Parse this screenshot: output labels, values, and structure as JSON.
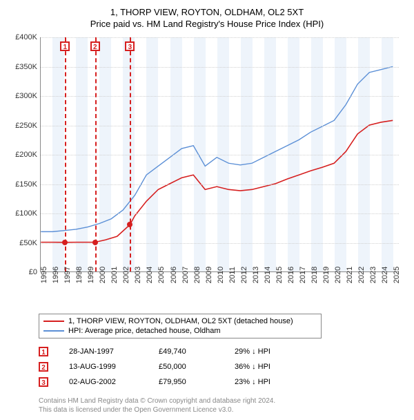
{
  "title_line1": "1, THORP VIEW, ROYTON, OLDHAM, OL2 5XT",
  "title_line2": "Price paid vs. HM Land Registry's House Price Index (HPI)",
  "chart": {
    "type": "line",
    "x_min": 1995,
    "x_max": 2025.5,
    "y_min": 0,
    "y_max": 400000,
    "y_ticks": [
      0,
      50000,
      100000,
      150000,
      200000,
      250000,
      300000,
      350000,
      400000
    ],
    "y_tick_labels": [
      "£0",
      "£50K",
      "£100K",
      "£150K",
      "£200K",
      "£250K",
      "£300K",
      "£350K",
      "£400K"
    ],
    "x_ticks": [
      1995,
      1996,
      1997,
      1998,
      1999,
      2000,
      2001,
      2002,
      2003,
      2004,
      2005,
      2006,
      2007,
      2008,
      2009,
      2010,
      2011,
      2012,
      2013,
      2014,
      2015,
      2016,
      2017,
      2018,
      2019,
      2020,
      2021,
      2022,
      2023,
      2024,
      2025
    ],
    "background_color": "#ffffff",
    "grid_color": "#d0d0d0",
    "shade_color": "#eef4fb",
    "series": [
      {
        "id": "price_paid",
        "color": "#d61f1f",
        "width": 1.6,
        "points": [
          [
            1995,
            50000
          ],
          [
            1996,
            50000
          ],
          [
            1997.07,
            49740
          ],
          [
            1998,
            50000
          ],
          [
            1999.62,
            50000
          ],
          [
            2000.5,
            54000
          ],
          [
            2001.5,
            60000
          ],
          [
            2002.59,
            79950
          ],
          [
            2003,
            95000
          ],
          [
            2004,
            120000
          ],
          [
            2005,
            140000
          ],
          [
            2006,
            150000
          ],
          [
            2007,
            160000
          ],
          [
            2008,
            165000
          ],
          [
            2009,
            140000
          ],
          [
            2010,
            145000
          ],
          [
            2011,
            140000
          ],
          [
            2012,
            138000
          ],
          [
            2013,
            140000
          ],
          [
            2014,
            145000
          ],
          [
            2015,
            150000
          ],
          [
            2016,
            158000
          ],
          [
            2017,
            165000
          ],
          [
            2018,
            172000
          ],
          [
            2019,
            178000
          ],
          [
            2020,
            185000
          ],
          [
            2021,
            205000
          ],
          [
            2022,
            235000
          ],
          [
            2023,
            250000
          ],
          [
            2024,
            255000
          ],
          [
            2025,
            258000
          ]
        ]
      },
      {
        "id": "hpi",
        "color": "#5b8fd6",
        "width": 1.4,
        "points": [
          [
            1995,
            68000
          ],
          [
            1996,
            68000
          ],
          [
            1997,
            70000
          ],
          [
            1998,
            72000
          ],
          [
            1999,
            76000
          ],
          [
            2000,
            82000
          ],
          [
            2001,
            90000
          ],
          [
            2002,
            105000
          ],
          [
            2003,
            130000
          ],
          [
            2004,
            165000
          ],
          [
            2005,
            180000
          ],
          [
            2006,
            195000
          ],
          [
            2007,
            210000
          ],
          [
            2008,
            215000
          ],
          [
            2009,
            180000
          ],
          [
            2010,
            195000
          ],
          [
            2011,
            185000
          ],
          [
            2012,
            182000
          ],
          [
            2013,
            185000
          ],
          [
            2014,
            195000
          ],
          [
            2015,
            205000
          ],
          [
            2016,
            215000
          ],
          [
            2017,
            225000
          ],
          [
            2018,
            238000
          ],
          [
            2019,
            248000
          ],
          [
            2020,
            258000
          ],
          [
            2021,
            285000
          ],
          [
            2022,
            320000
          ],
          [
            2023,
            340000
          ],
          [
            2024,
            345000
          ],
          [
            2025,
            350000
          ]
        ]
      }
    ],
    "sale_markers": [
      {
        "n": "1",
        "x": 1997.07,
        "y": 49740,
        "color": "#d61f1f"
      },
      {
        "n": "2",
        "x": 1999.62,
        "y": 50000,
        "color": "#d61f1f"
      },
      {
        "n": "3",
        "x": 2002.59,
        "y": 79950,
        "color": "#d61f1f"
      }
    ]
  },
  "legend": {
    "items": [
      {
        "color": "#d61f1f",
        "label": "1, THORP VIEW, ROYTON, OLDHAM, OL2 5XT (detached house)"
      },
      {
        "color": "#5b8fd6",
        "label": "HPI: Average price, detached house, Oldham"
      }
    ]
  },
  "sales": [
    {
      "n": "1",
      "color": "#d61f1f",
      "date": "28-JAN-1997",
      "price": "£49,740",
      "diff": "29% ↓ HPI"
    },
    {
      "n": "2",
      "color": "#d61f1f",
      "date": "13-AUG-1999",
      "price": "£50,000",
      "diff": "36% ↓ HPI"
    },
    {
      "n": "3",
      "color": "#d61f1f",
      "date": "02-AUG-2002",
      "price": "£79,950",
      "diff": "23% ↓ HPI"
    }
  ],
  "footnote_line1": "Contains HM Land Registry data © Crown copyright and database right 2024.",
  "footnote_line2": "This data is licensed under the Open Government Licence v3.0."
}
